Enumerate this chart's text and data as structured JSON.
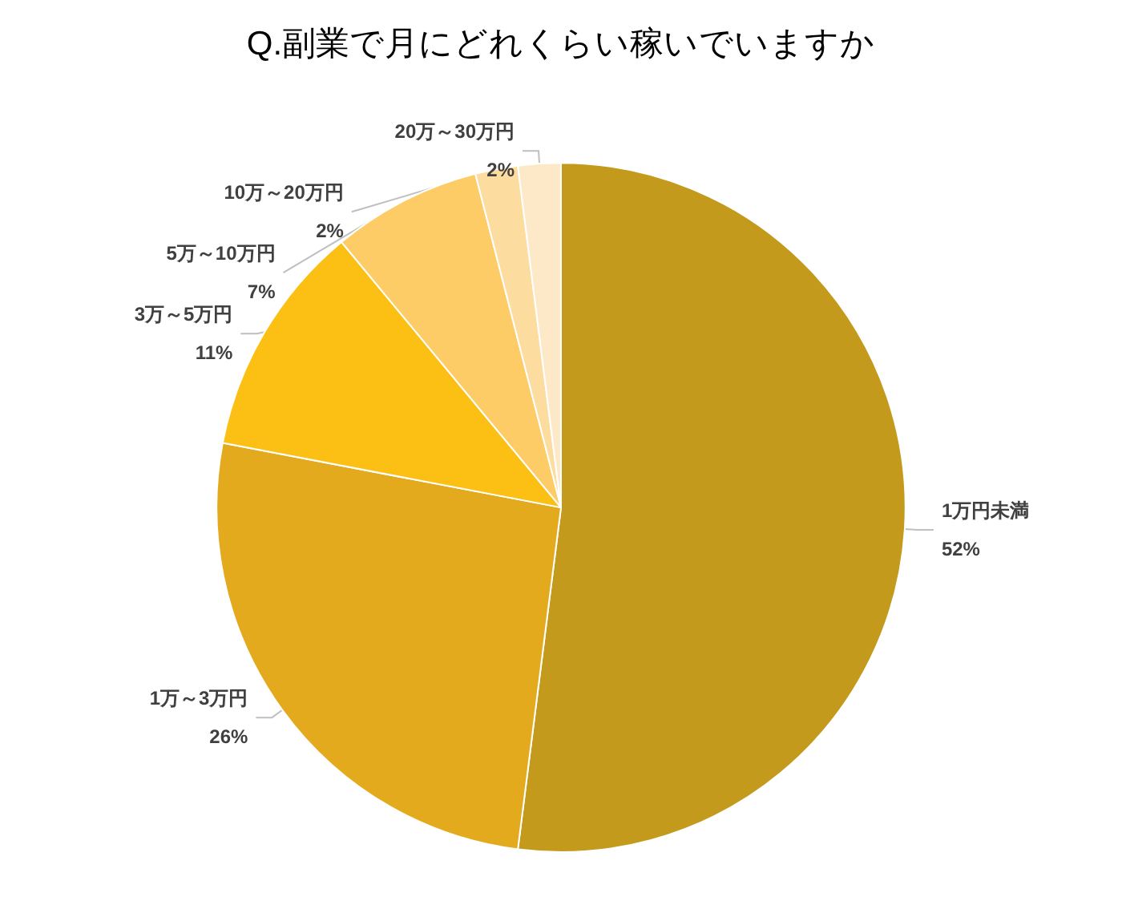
{
  "chart_data": {
    "type": "pie",
    "title": "Q.副業で月にどれくらい稼いでいますか",
    "categories": [
      "1万円未満",
      "1万～3万円",
      "3万～5万円",
      "5万～10万円",
      "10万～20万円",
      "20万～30万円"
    ],
    "values": [
      52,
      26,
      11,
      7,
      2,
      2
    ],
    "colors": [
      "#c49a1c",
      "#e4aa1e",
      "#fcbf13",
      "#fdcc66",
      "#fddca0",
      "#fde8c8"
    ],
    "value_labels": [
      "52%",
      "26%",
      "11%",
      "7%",
      "2%",
      "2%"
    ]
  }
}
